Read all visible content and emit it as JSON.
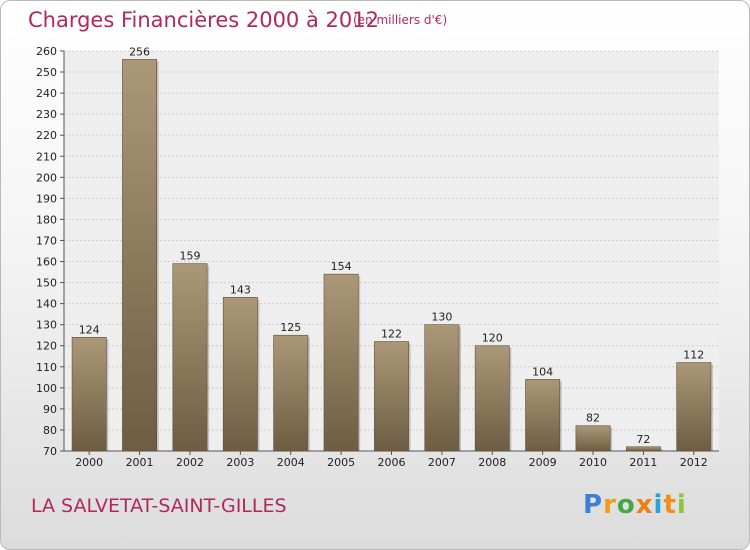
{
  "header": {
    "title": "Charges Financières 2000 à 2012",
    "subtitle": "(en milliers d'€)"
  },
  "place": "LA SALVETAT-SAINT-GILLES",
  "logo": {
    "letters": [
      "P",
      "r",
      "o",
      "x",
      "i",
      "t",
      "i"
    ],
    "colors": [
      "#3d7fd6",
      "#f39a1b",
      "#44a845",
      "#ee7d12",
      "#2e9fd8",
      "#ef8f1a",
      "#8cc63e"
    ]
  },
  "colors": {
    "accent": "#b0285e",
    "bar_light": "#ab9877",
    "bar_dark": "#6e5d43"
  },
  "chart_data": {
    "type": "bar",
    "title": "Charges Financières 2000 à 2012",
    "subtitle": "(en milliers d'€)",
    "categories": [
      "2000",
      "2001",
      "2002",
      "2003",
      "2004",
      "2005",
      "2006",
      "2007",
      "2008",
      "2009",
      "2010",
      "2011",
      "2012"
    ],
    "values": [
      124,
      256,
      159,
      143,
      125,
      154,
      122,
      130,
      120,
      104,
      82,
      72,
      112
    ],
    "ylim": [
      70,
      260
    ],
    "ytick_step": 10,
    "grid": true,
    "legend": "none"
  }
}
